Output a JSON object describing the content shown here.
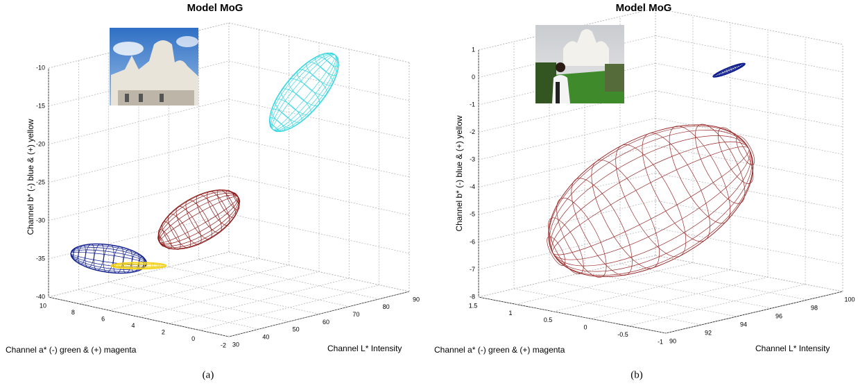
{
  "chart_data": [
    {
      "type": "ellipsoid3d",
      "title": "Model MoG",
      "caption": "(a)",
      "xlabel": "Channel L*  Intensity",
      "ylabel": "Channel a*  (-) green & (+) magenta",
      "zlabel": "Channel b*  (-) blue & (+) yellow",
      "xlim": [
        30,
        90
      ],
      "ylim": [
        -2,
        10
      ],
      "zlim": [
        -40,
        -10
      ],
      "xticks": [
        30,
        40,
        50,
        60,
        70,
        80,
        90
      ],
      "yticks": [
        10,
        8,
        6,
        4,
        2,
        0,
        -2
      ],
      "zticks": [
        -40,
        -35,
        -30,
        -25,
        -20,
        -15,
        -10
      ],
      "grid": true,
      "series": [
        {
          "color": "#33d6e0",
          "center": [
            85,
            4,
            -16
          ]
        },
        {
          "color": "#8b1a1a",
          "center": [
            65,
            7,
            -32
          ]
        },
        {
          "color": "#0b1a8c",
          "center": [
            45,
            9,
            -36
          ]
        },
        {
          "color": "#f2d21a",
          "center": [
            50,
            8,
            -37
          ]
        }
      ]
    },
    {
      "type": "ellipsoid3d",
      "title": "Model MoG",
      "caption": "(b)",
      "xlabel": "Channel L*  Intensity",
      "ylabel": "Channel a*  (-) green & (+) magenta",
      "zlabel": "Channel b*  (-) blue & (+) yellow",
      "xlim": [
        90,
        100
      ],
      "ylim": [
        -1,
        1.5
      ],
      "zlim": [
        -8,
        1
      ],
      "xticks": [
        90,
        92,
        94,
        96,
        98,
        100
      ],
      "yticks": [
        1.5,
        1,
        0.5,
        0,
        -0.5,
        -1
      ],
      "zticks": [
        -8,
        -7,
        -6,
        -5,
        -4,
        -3,
        -2,
        -1,
        0,
        1
      ],
      "grid": true,
      "series": [
        {
          "color": "#9a2a2a",
          "center": [
            95.5,
            0.5,
            -4.8
          ]
        },
        {
          "color": "#0b1a8c",
          "center": [
            99.5,
            0.4,
            -0.6
          ]
        }
      ]
    }
  ]
}
